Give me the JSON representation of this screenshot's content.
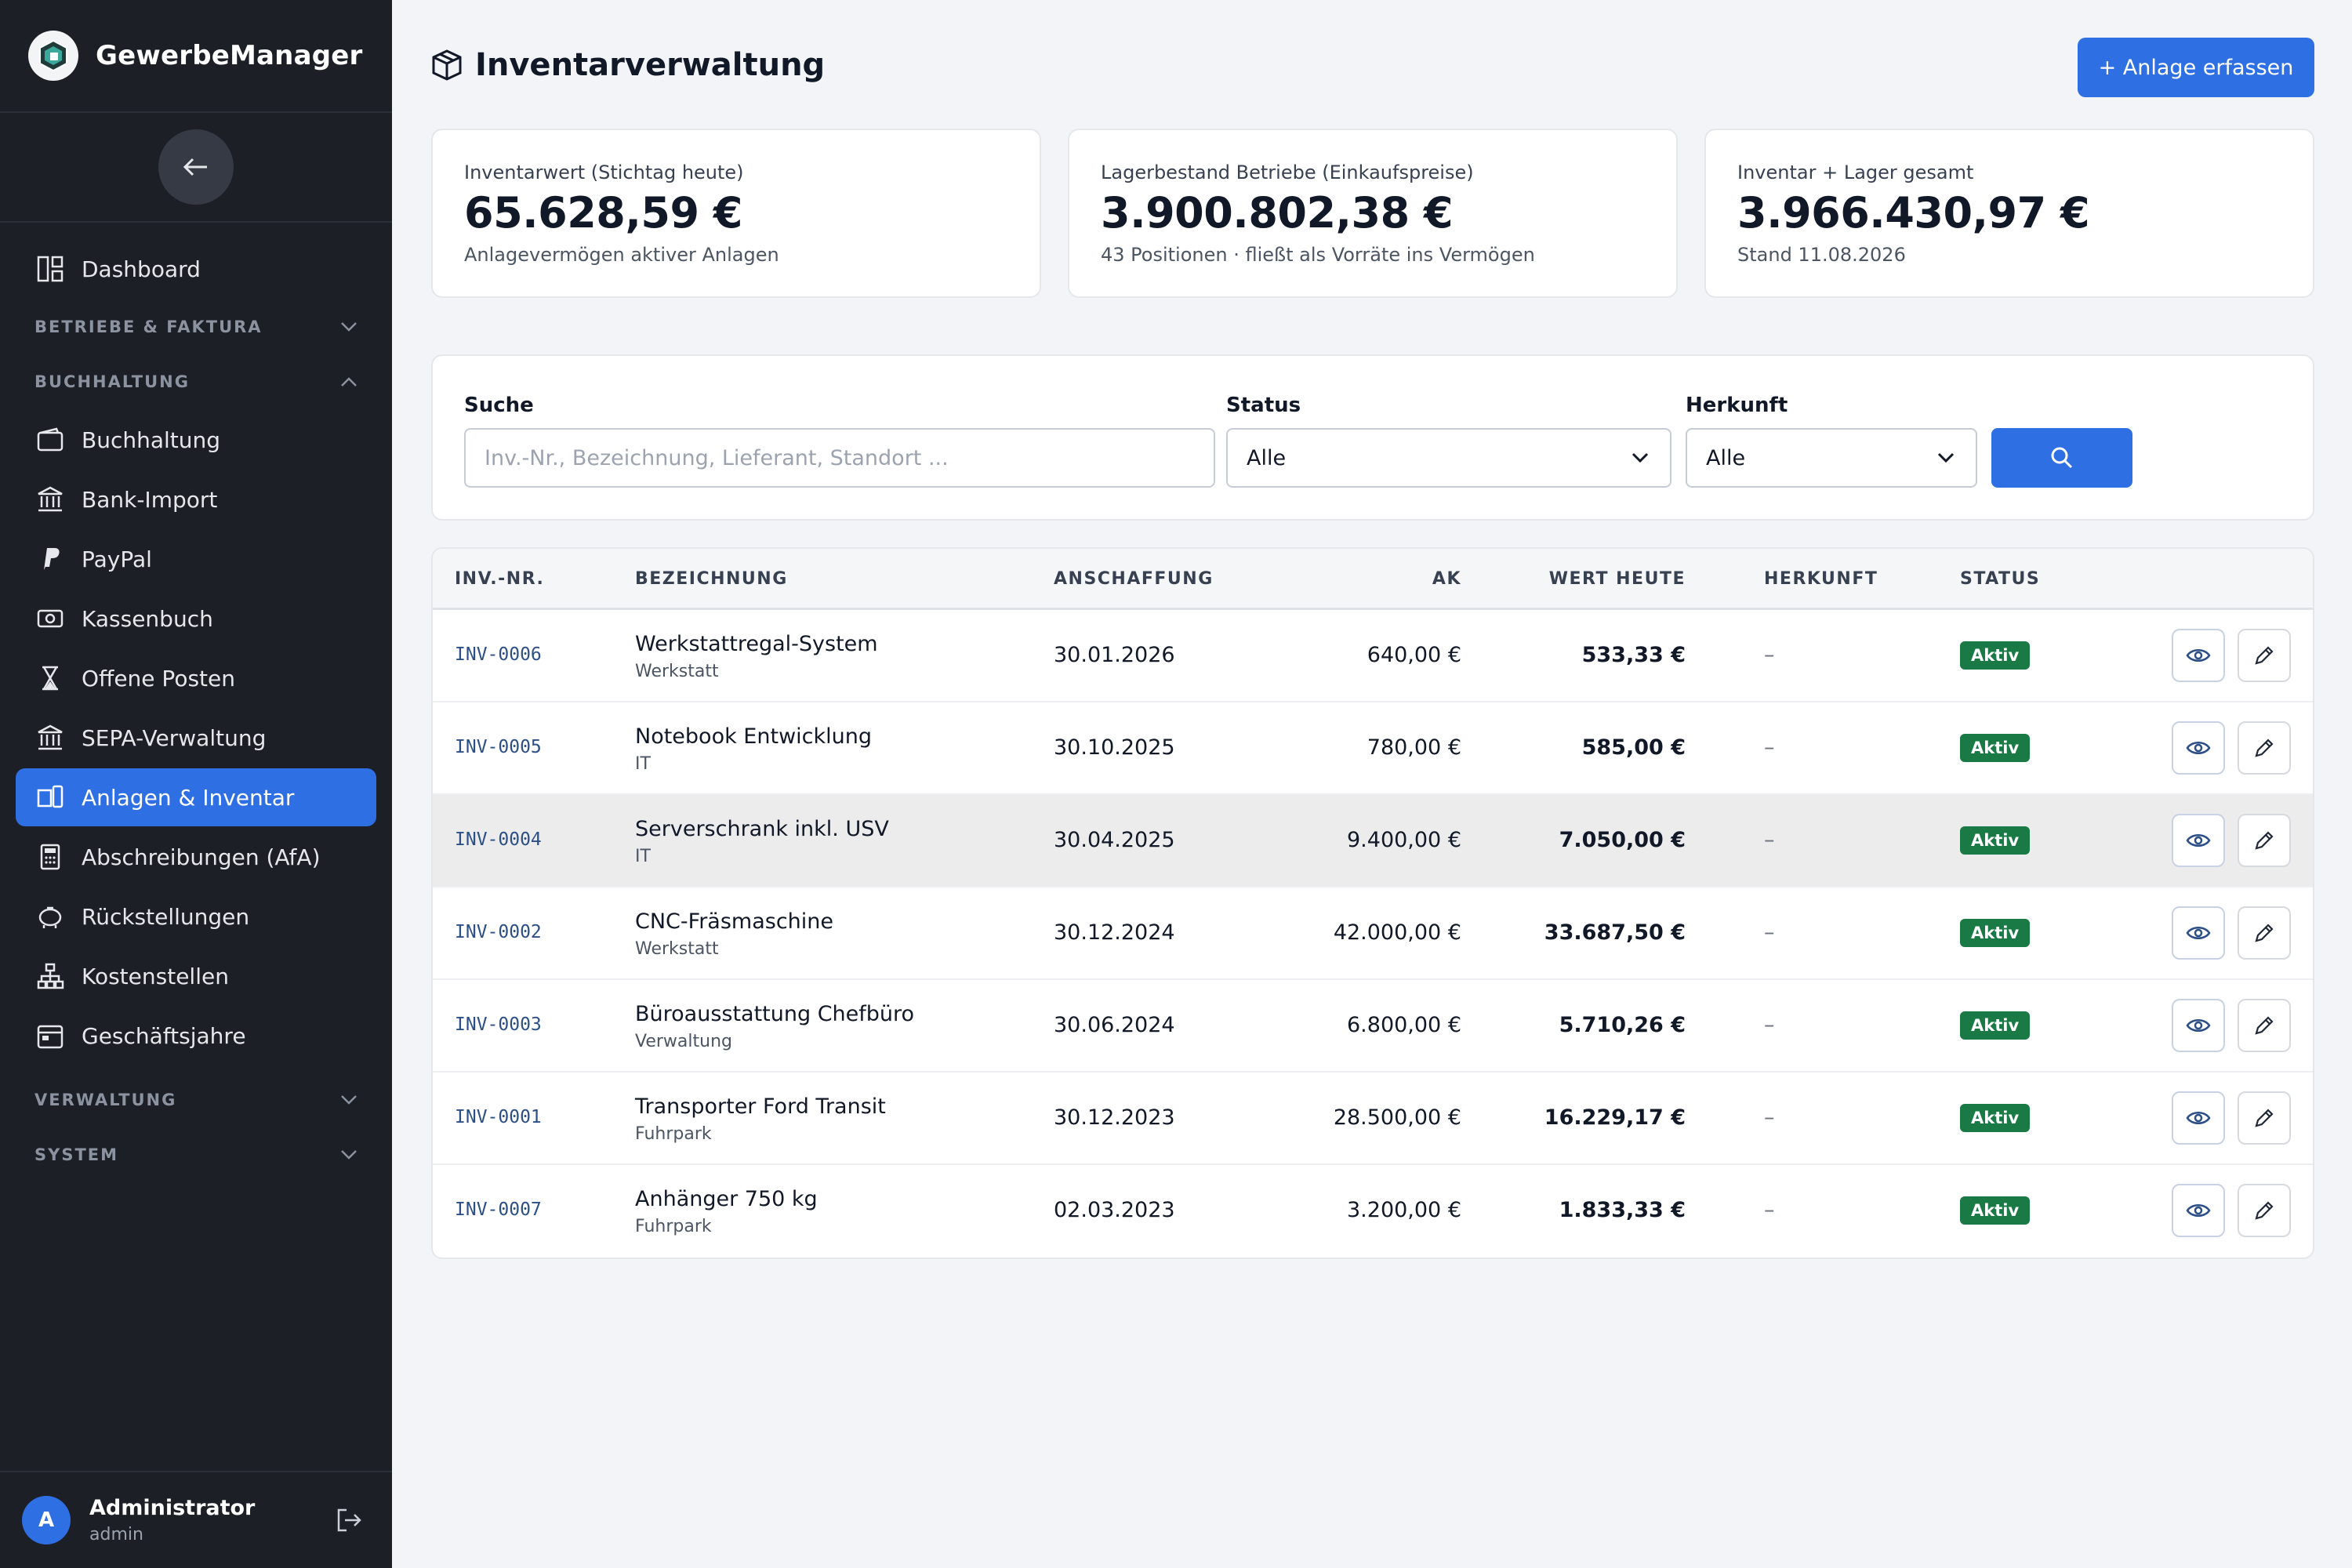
{
  "app": {
    "name": "GewerbeManager"
  },
  "sidebar": {
    "items_top": [
      {
        "label": "Dashboard",
        "icon": "dashboard-icon"
      }
    ],
    "groups": {
      "betriebe": "BETRIEBE & FAKTURA",
      "buchhaltung": "BUCHHALTUNG",
      "verwaltung": "VERWALTUNG",
      "system": "SYSTEM"
    },
    "buchhaltung_items": [
      {
        "label": "Buchhaltung"
      },
      {
        "label": "Bank-Import"
      },
      {
        "label": "PayPal"
      },
      {
        "label": "Kassenbuch"
      },
      {
        "label": "Offene Posten"
      },
      {
        "label": "SEPA-Verwaltung"
      },
      {
        "label": "Anlagen & Inventar",
        "active": true
      },
      {
        "label": "Abschreibungen (AfA)"
      },
      {
        "label": "Rückstellungen"
      },
      {
        "label": "Kostenstellen"
      },
      {
        "label": "Geschäftsjahre"
      }
    ],
    "user": {
      "initial": "A",
      "name": "Administrator",
      "role": "admin"
    }
  },
  "header": {
    "title": "Inventarverwaltung",
    "primary_button": "+ Anlage erfassen"
  },
  "kpis": [
    {
      "label": "Inventarwert (Stichtag heute)",
      "value": "65.628,59 €",
      "sub": "Anlagevermögen aktiver Anlagen"
    },
    {
      "label": "Lagerbestand Betriebe (Einkaufspreise)",
      "value": "3.900.802,38 €",
      "sub": "43 Positionen · fließt als Vorräte ins Vermögen"
    },
    {
      "label": "Inventar + Lager gesamt",
      "value": "3.966.430,97 €",
      "sub": "Stand 11.08.2026"
    }
  ],
  "filters": {
    "search_label": "Suche",
    "search_placeholder": "Inv.-Nr., Bezeichnung, Lieferant, Standort ...",
    "status_label": "Status",
    "status_value": "Alle",
    "herkunft_label": "Herkunft",
    "herkunft_value": "Alle"
  },
  "table": {
    "headers": {
      "inv": "INV.-NR.",
      "bezeichnung": "BEZEICHNUNG",
      "anschaffung": "ANSCHAFFUNG",
      "ak": "AK",
      "wert": "WERT HEUTE",
      "herkunft": "HERKUNFT",
      "status": "STATUS"
    },
    "rows": [
      {
        "inv": "INV-0006",
        "title": "Werkstattregal-System",
        "sub": "Werkstatt",
        "date": "30.01.2026",
        "ak": "640,00 €",
        "wert": "533,33 €",
        "herkunft": "–",
        "status": "Aktiv"
      },
      {
        "inv": "INV-0005",
        "title": "Notebook Entwicklung",
        "sub": "IT",
        "date": "30.10.2025",
        "ak": "780,00 €",
        "wert": "585,00 €",
        "herkunft": "–",
        "status": "Aktiv"
      },
      {
        "inv": "INV-0004",
        "title": "Serverschrank inkl. USV",
        "sub": "IT",
        "date": "30.04.2025",
        "ak": "9.400,00 €",
        "wert": "7.050,00 €",
        "herkunft": "–",
        "status": "Aktiv"
      },
      {
        "inv": "INV-0002",
        "title": "CNC-Fräsmaschine",
        "sub": "Werkstatt",
        "date": "30.12.2024",
        "ak": "42.000,00 €",
        "wert": "33.687,50 €",
        "herkunft": "–",
        "status": "Aktiv"
      },
      {
        "inv": "INV-0003",
        "title": "Büroausstattung Chefbüro",
        "sub": "Verwaltung",
        "date": "30.06.2024",
        "ak": "6.800,00 €",
        "wert": "5.710,26 €",
        "herkunft": "–",
        "status": "Aktiv"
      },
      {
        "inv": "INV-0001",
        "title": "Transporter Ford Transit",
        "sub": "Fuhrpark",
        "date": "30.12.2023",
        "ak": "28.500,00 €",
        "wert": "16.229,17 €",
        "herkunft": "–",
        "status": "Aktiv"
      },
      {
        "inv": "INV-0007",
        "title": "Anhänger 750 kg",
        "sub": "Fuhrpark",
        "date": "02.03.2023",
        "ak": "3.200,00 €",
        "wert": "1.833,33 €",
        "herkunft": "–",
        "status": "Aktiv"
      }
    ]
  },
  "colors": {
    "accent": "#2f6fe4",
    "sidebar_bg": "#1c1f26",
    "status_active": "#1a7a45"
  }
}
